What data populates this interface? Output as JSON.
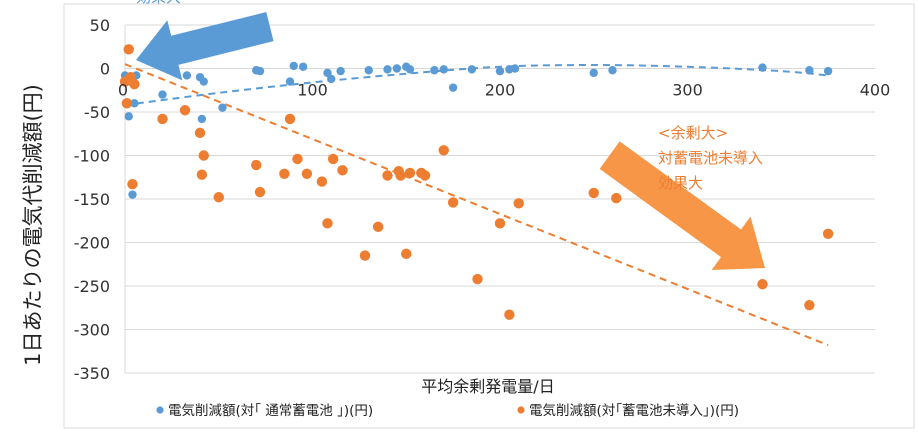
{
  "chart_data": {
    "type": "scatter",
    "xlabel": "平均余剰発電量/日",
    "ylabel": "1日あたりの電気代削減額(円)",
    "xlim": [
      0,
      400
    ],
    "ylim": [
      -350,
      50
    ],
    "x_ticks": [
      "100",
      "200",
      "300",
      "400"
    ],
    "y_ticks": [
      "50",
      "0",
      "-50",
      "-100",
      "-150",
      "-200",
      "-250",
      "-300",
      "-350"
    ],
    "grid": "horizontal",
    "legend_position": "bottom",
    "series": [
      {
        "name": "電気削減額(対｢ 通常蓄電池 ｣)(円)",
        "color": "#5b9bd5",
        "points": [
          [
            0,
            -8
          ],
          [
            1,
            -12
          ],
          [
            2,
            -55
          ],
          [
            3,
            -15
          ],
          [
            4,
            -145
          ],
          [
            5,
            -40
          ],
          [
            6,
            -8
          ],
          [
            20,
            -30
          ],
          [
            33,
            -8
          ],
          [
            40,
            -10
          ],
          [
            41,
            -58
          ],
          [
            42,
            -15
          ],
          [
            52,
            -45
          ],
          [
            70,
            -2
          ],
          [
            72,
            -3
          ],
          [
            88,
            -15
          ],
          [
            90,
            3
          ],
          [
            95,
            2
          ],
          [
            108,
            -5
          ],
          [
            110,
            -12
          ],
          [
            115,
            -3
          ],
          [
            130,
            -2
          ],
          [
            140,
            -1
          ],
          [
            145,
            0
          ],
          [
            150,
            2
          ],
          [
            152,
            -1
          ],
          [
            165,
            -2
          ],
          [
            170,
            -1
          ],
          [
            175,
            -22
          ],
          [
            185,
            -1
          ],
          [
            200,
            -3
          ],
          [
            205,
            -1
          ],
          [
            208,
            0
          ],
          [
            250,
            -5
          ],
          [
            260,
            -2
          ],
          [
            340,
            1
          ],
          [
            365,
            -2
          ],
          [
            375,
            -3
          ]
        ]
      },
      {
        "name": "電気削減額(対｢蓄電池未導入｣)(円)",
        "color": "#ed7d31",
        "points": [
          [
            0,
            -15
          ],
          [
            1,
            -40
          ],
          [
            2,
            22
          ],
          [
            3,
            -10
          ],
          [
            4,
            -133
          ],
          [
            5,
            -18
          ],
          [
            20,
            -58
          ],
          [
            32,
            -48
          ],
          [
            40,
            -74
          ],
          [
            41,
            -122
          ],
          [
            42,
            -100
          ],
          [
            50,
            -148
          ],
          [
            70,
            -111
          ],
          [
            72,
            -142
          ],
          [
            85,
            -121
          ],
          [
            88,
            -58
          ],
          [
            92,
            -104
          ],
          [
            97,
            -121
          ],
          [
            105,
            -130
          ],
          [
            108,
            -178
          ],
          [
            111,
            -104
          ],
          [
            116,
            -117
          ],
          [
            128,
            -215
          ],
          [
            135,
            -182
          ],
          [
            140,
            -123
          ],
          [
            146,
            -118
          ],
          [
            147,
            -123
          ],
          [
            150,
            -213
          ],
          [
            152,
            -120
          ],
          [
            158,
            -120
          ],
          [
            160,
            -123
          ],
          [
            170,
            -94
          ],
          [
            175,
            -154
          ],
          [
            188,
            -242
          ],
          [
            200,
            -178
          ],
          [
            205,
            -283
          ],
          [
            210,
            -155
          ],
          [
            250,
            -143
          ],
          [
            262,
            -149
          ],
          [
            340,
            -248
          ],
          [
            365,
            -272
          ],
          [
            375,
            -190
          ]
        ]
      }
    ],
    "trendlines": [
      {
        "series": 0,
        "type": "polynomial",
        "points": [
          [
            0,
            -42
          ],
          [
            50,
            -28
          ],
          [
            100,
            -16
          ],
          [
            150,
            -6
          ],
          [
            200,
            2
          ],
          [
            250,
            4
          ],
          [
            300,
            2
          ],
          [
            350,
            -3
          ],
          [
            375,
            -8
          ]
        ]
      },
      {
        "series": 1,
        "type": "linear",
        "points": [
          [
            0,
            5
          ],
          [
            375,
            -318
          ]
        ]
      }
    ],
    "annotations": [
      {
        "lines": [
          "効果大"
        ],
        "color": "#5b9bd5"
      },
      {
        "lines": [
          "<余剰大>",
          "対蓄電池未導入",
          "効果大"
        ],
        "color": "#ed7d31"
      }
    ],
    "arrows": [
      {
        "color": "#5b9bd5",
        "direction": "up-left"
      },
      {
        "color": "#f79646",
        "direction": "down-right"
      }
    ]
  }
}
